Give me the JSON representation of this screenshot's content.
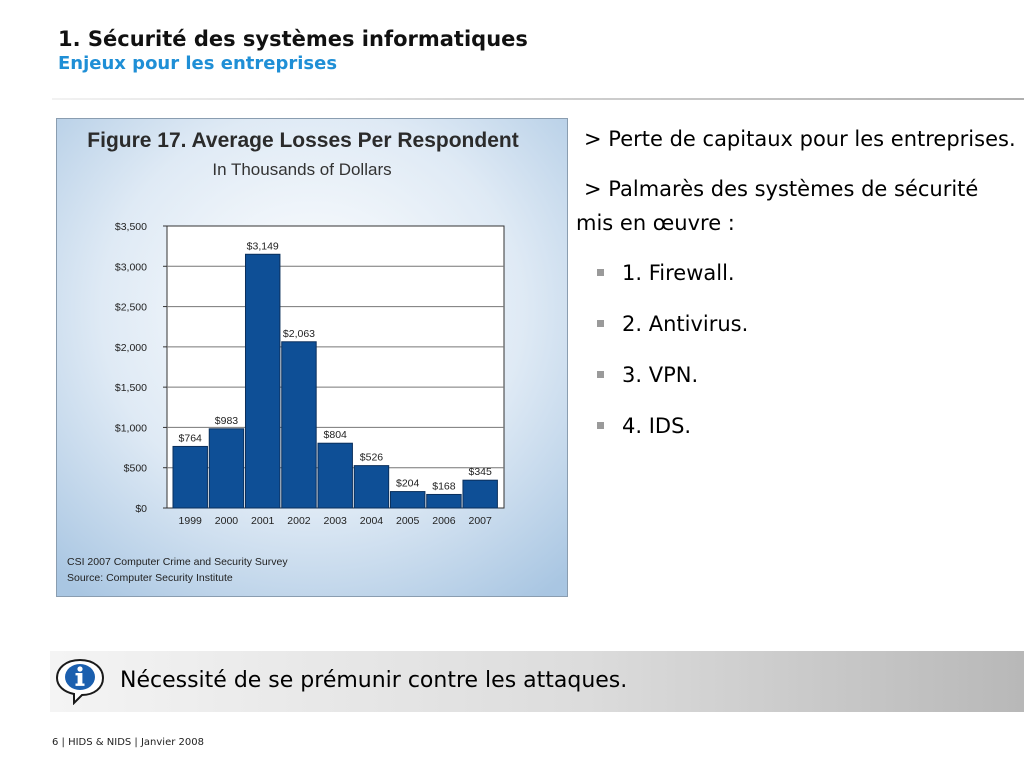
{
  "header": {
    "title": "1. Sécurité des systèmes informatiques",
    "subtitle": "Enjeux pour les entreprises"
  },
  "chart_data": {
    "type": "bar",
    "title": "Figure 17. Average Losses Per Respondent",
    "subtitle": "In Thousands of Dollars",
    "categories": [
      "1999",
      "2000",
      "2001",
      "2002",
      "2003",
      "2004",
      "2005",
      "2006",
      "2007"
    ],
    "values": [
      764,
      983,
      3149,
      2063,
      804,
      526,
      204,
      168,
      345
    ],
    "data_labels": [
      "$764",
      "$983",
      "$3,149",
      "$2,063",
      "$804",
      "$526",
      "$204",
      "$168",
      "$345"
    ],
    "y_ticks": [
      0,
      500,
      1000,
      1500,
      2000,
      2500,
      3000,
      3500
    ],
    "y_tick_labels": [
      "$0",
      "$500",
      "$1,000",
      "$1,500",
      "$2,000",
      "$2,500",
      "$3,000",
      "$3,500"
    ],
    "ylim": [
      0,
      3500
    ],
    "grid": true,
    "xlabel": "",
    "ylabel": "",
    "colors": {
      "bar": "#0e4f96",
      "bar_stroke": "#0a2f5c",
      "background_center": "#ffffff",
      "background_edge": "#a9c6e2"
    },
    "source_lines": [
      "CSI 2007 Computer Crime and Security Survey",
      "Source: Computer Security Institute"
    ]
  },
  "bullets": {
    "lead1": {
      "marker": ">",
      "text": "Perte de capitaux pour les entreprises."
    },
    "lead2": {
      "marker": ">",
      "text": "Palmarès des systèmes de sécurité mis en œuvre :"
    },
    "items": [
      "1. Firewall.",
      "2. Antivirus.",
      "3. VPN.",
      "4. IDS."
    ]
  },
  "info": {
    "icon": "info-icon",
    "text": "Nécessité de se prémunir contre les attaques."
  },
  "footer": {
    "text": "6 | HIDS & NIDS | Janvier 2008"
  }
}
